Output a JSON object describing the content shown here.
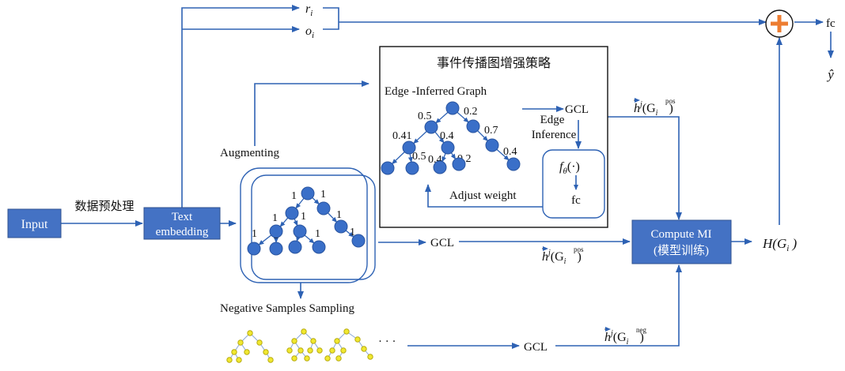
{
  "boxes": {
    "input": "Input",
    "text_embedding_1": "Text",
    "text_embedding_2": "embedding",
    "compute_mi_1": "Compute MI",
    "compute_mi_2": "(模型训练)"
  },
  "labels": {
    "preprocess": "数据预处理",
    "augmenting": "Augmenting",
    "negative_sampling": "Negative Samples Sampling",
    "strategy_title": "事件传播图增强策略",
    "edge_inferred_graph": "Edge -Inferred Graph",
    "edge_inference_1": "Edge",
    "edge_inference_2": "Inference",
    "adjust_weight": "Adjust weight",
    "gcl": "GCL",
    "fc": "fc",
    "ellipsis": "· · ·",
    "r_main": "r",
    "r_sub": "i",
    "o_main": "o",
    "o_sub": "i",
    "f_main": "f",
    "f_sub": "θ",
    "f_arg": "(·)",
    "h_main": "h",
    "h_sup": "j",
    "g_main": "(G",
    "g_sub": "i",
    "g_close": ")",
    "pos_sup": "pos",
    "neg_sup": "neg",
    "H_label": "H(G",
    "H_sub": "i",
    "H_close": " )",
    "y_hat": "ŷ"
  },
  "weights_original": [
    "1",
    "1",
    "1",
    "1",
    "1",
    "1",
    "1",
    "1",
    "1",
    "1",
    "1"
  ],
  "weights_inferred": [
    "0.5",
    "0.2",
    "0.41",
    "0.4",
    "0.7",
    "0.5",
    "0.4",
    "0.2",
    "0.4"
  ],
  "colors": {
    "box_fill": "#4472c4",
    "box_stroke": "#2f528f",
    "arrow": "#2e62b4",
    "node": "#3a6fc8",
    "node_stroke": "#2a55a0",
    "neg_node": "#f0e830",
    "neg_edge": "#8aa8d8",
    "plus": "#ed7d31"
  }
}
